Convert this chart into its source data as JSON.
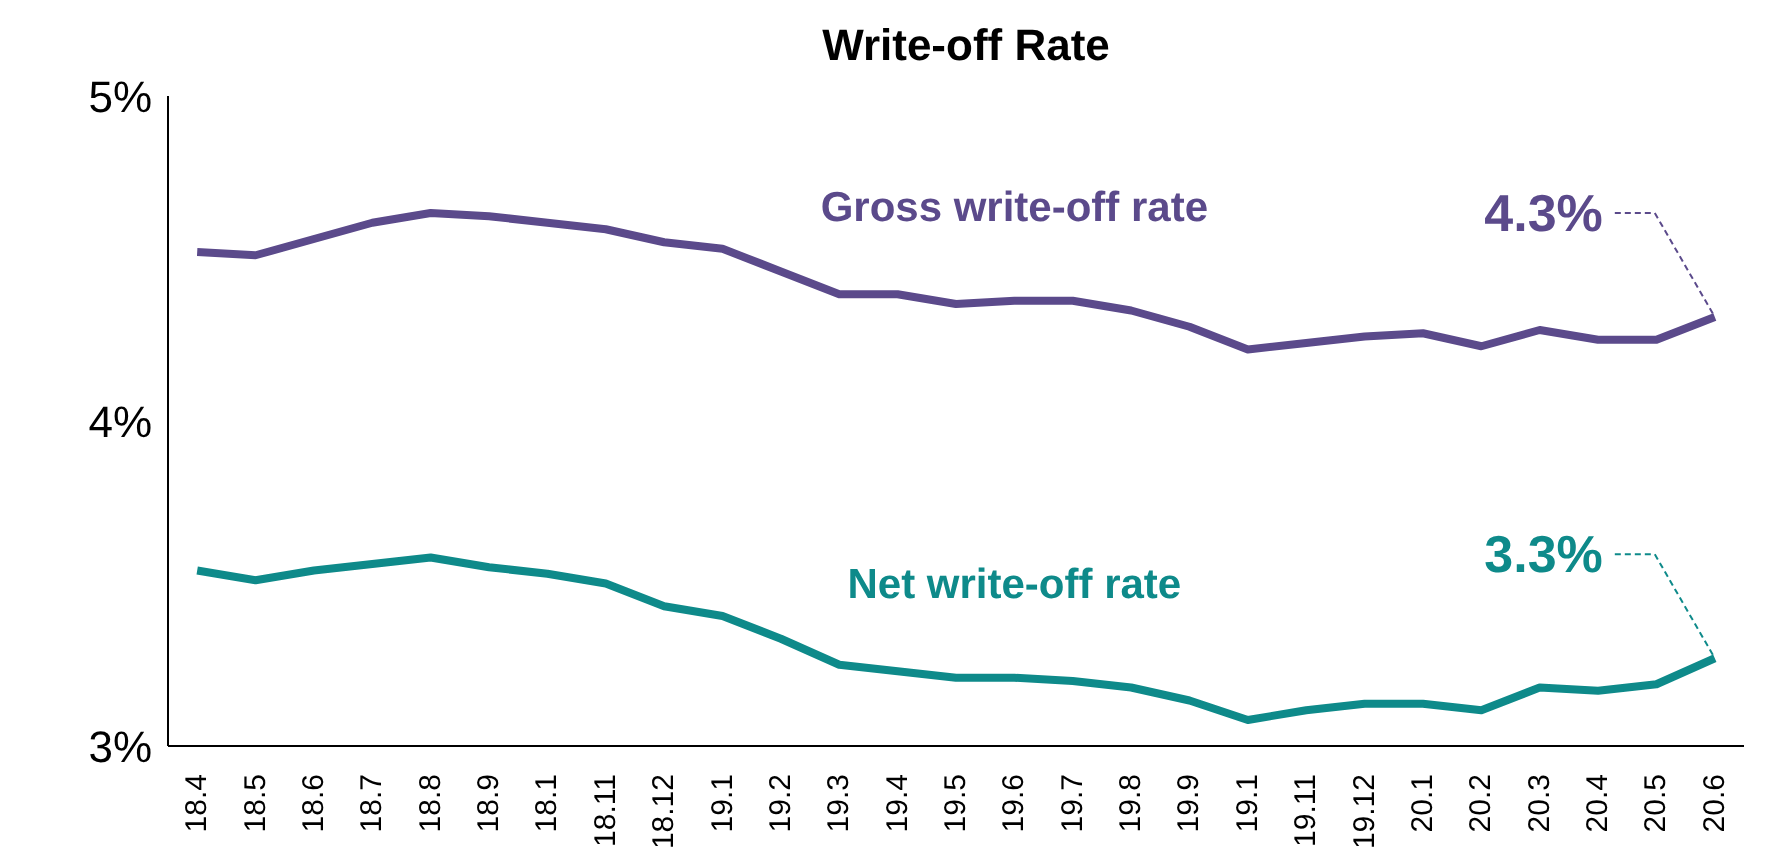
{
  "chart_data": {
    "type": "line",
    "title": "Write-off Rate",
    "categories": [
      "18.4",
      "18.5",
      "18.6",
      "18.7",
      "18.8",
      "18.9",
      "18.1",
      "18.11",
      "18.12",
      "19.1",
      "19.2",
      "19.3",
      "19.4",
      "19.5",
      "19.6",
      "19.7",
      "19.8",
      "19.9",
      "19.1",
      "19.11",
      "19.12",
      "20.1",
      "20.2",
      "20.3",
      "20.4",
      "20.5",
      "20.6"
    ],
    "series": [
      {
        "name": "Gross write-off rate",
        "color": "#5b4a8b",
        "values": [
          4.52,
          4.51,
          4.56,
          4.61,
          4.64,
          4.63,
          4.61,
          4.59,
          4.55,
          4.53,
          4.46,
          4.39,
          4.39,
          4.36,
          4.37,
          4.37,
          4.34,
          4.29,
          4.22,
          4.24,
          4.26,
          4.27,
          4.23,
          4.28,
          4.25,
          4.25,
          4.32
        ]
      },
      {
        "name": "Net write-off rate",
        "color": "#0e8a8a",
        "values": [
          3.54,
          3.51,
          3.54,
          3.56,
          3.58,
          3.55,
          3.53,
          3.5,
          3.43,
          3.4,
          3.33,
          3.25,
          3.23,
          3.21,
          3.21,
          3.2,
          3.18,
          3.14,
          3.08,
          3.11,
          3.13,
          3.13,
          3.11,
          3.18,
          3.17,
          3.19,
          3.27
        ]
      }
    ],
    "ylim": [
      3,
      5
    ],
    "yticks": [
      {
        "value": 3,
        "label": "3%"
      },
      {
        "value": 4,
        "label": "4%"
      },
      {
        "value": 5,
        "label": "5%"
      }
    ],
    "annotations": [
      {
        "text": "4.3%",
        "x": "20.6",
        "y": 4.32
      },
      {
        "text": "3.3%",
        "x": "20.6",
        "y": 3.27
      }
    ],
    "grid": false,
    "legend": false,
    "marker": "none",
    "line_style": "solid"
  }
}
